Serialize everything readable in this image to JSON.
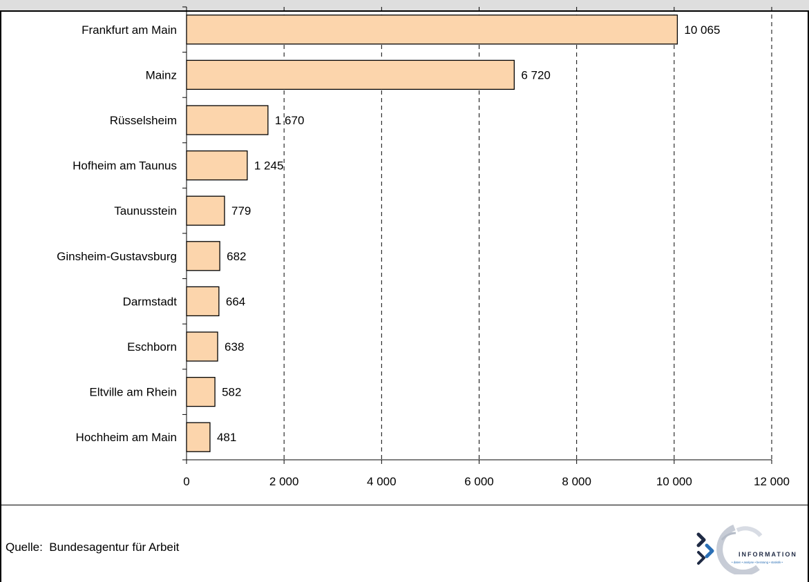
{
  "chart_data": {
    "type": "bar",
    "orientation": "horizontal",
    "categories": [
      "Frankfurt am Main",
      "Mainz",
      "Rüsselsheim",
      "Hofheim am Taunus",
      "Taunusstein",
      "Ginsheim-Gustavsburg",
      "Darmstadt",
      "Eschborn",
      "Eltville am Rhein",
      "Hochheim am Main"
    ],
    "values": [
      10065,
      6720,
      1670,
      1245,
      779,
      682,
      664,
      638,
      582,
      481
    ],
    "value_labels": [
      "10 065",
      "6 720",
      "1 670",
      "1 245",
      "779",
      "682",
      "664",
      "638",
      "582",
      "481"
    ],
    "xlim": [
      0,
      12000
    ],
    "x_ticks": [
      0,
      2000,
      4000,
      6000,
      8000,
      10000,
      12000
    ],
    "x_tick_labels": [
      "0",
      "2 000",
      "4 000",
      "6 000",
      "8 000",
      "10 000",
      "12 000"
    ],
    "grid": "vertical dashed",
    "bar_color": "#fcd5ac",
    "bar_edge_color": "#000000"
  },
  "footer": {
    "source": "Quelle:  Bundesagentur für Arbeit",
    "logo_text": "INFORMATION",
    "logo_tagline": "• daten • analyse • beratung • statistik •"
  }
}
